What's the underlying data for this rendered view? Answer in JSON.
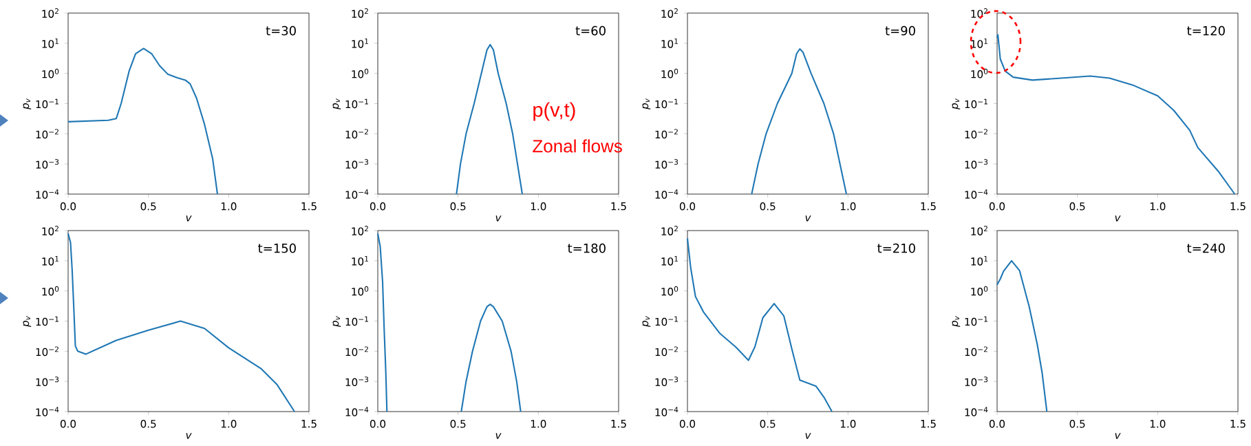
{
  "chart_data": [
    {
      "type": "line",
      "xlabel": "v",
      "ylabel": "p$_{v}$",
      "annotations": [
        "t=30"
      ],
      "log": "y",
      "xlim": [
        0,
        1.5
      ],
      "ylim": [
        0.0001,
        100
      ],
      "xticks": [
        {
          "value": 0,
          "label": "0.0"
        },
        {
          "value": 0.5,
          "label": "0.5"
        },
        {
          "value": 1,
          "label": "1.0"
        },
        {
          "value": 1.5,
          "label": "1.5"
        }
      ],
      "yticks": [
        {
          "value": 0.0001,
          "label": "10$^{−4}$"
        },
        {
          "value": 0.001,
          "label": "10$^{−3}$"
        },
        {
          "value": 0.01,
          "label": "10$^{−2}$"
        },
        {
          "value": 0.1,
          "label": "10$^{−1}$"
        },
        {
          "value": 1,
          "label": "10$^{0}$"
        },
        {
          "value": 10,
          "label": "10$^{1}$"
        },
        {
          "value": 100,
          "label": "10$^{2}$"
        }
      ],
      "x": [
        0,
        0.25,
        0.3,
        0.33,
        0.38,
        0.42,
        0.47,
        0.52,
        0.57,
        0.62,
        0.68,
        0.73,
        0.76,
        0.8,
        0.85,
        0.9,
        0.93
      ],
      "series": [
        {
          "color": "#1f77b4",
          "values": [
            0.025,
            0.028,
            0.032,
            0.1,
            1.2,
            4.5,
            6.7,
            4.5,
            1.8,
            0.95,
            0.72,
            0.6,
            0.45,
            0.15,
            0.02,
            0.0015,
            0.0001
          ]
        }
      ]
    },
    {
      "type": "line",
      "xlabel": "v",
      "ylabel": "p$_{v}$",
      "annotations": [
        "t=60",
        "p(v,t)",
        "Zonal flows"
      ],
      "log": "y",
      "xlim": [
        0,
        1.5
      ],
      "ylim": [
        0.0001,
        100
      ],
      "xticks": [
        {
          "value": 0,
          "label": "0.0"
        },
        {
          "value": 0.5,
          "label": "0.5"
        },
        {
          "value": 1,
          "label": "1.0"
        },
        {
          "value": 1.5,
          "label": "1.5"
        }
      ],
      "yticks": [
        {
          "value": 0.0001,
          "label": "10$^{−4}$"
        },
        {
          "value": 0.001,
          "label": "10$^{−3}$"
        },
        {
          "value": 0.01,
          "label": "10$^{−2}$"
        },
        {
          "value": 0.1,
          "label": "10$^{−1}$"
        },
        {
          "value": 1,
          "label": "10$^{0}$"
        },
        {
          "value": 10,
          "label": "10$^{1}$"
        },
        {
          "value": 100,
          "label": "10$^{2}$"
        }
      ],
      "x": [
        0.49,
        0.515,
        0.55,
        0.6,
        0.645,
        0.68,
        0.7,
        0.72,
        0.75,
        0.8,
        0.84,
        0.87,
        0.9
      ],
      "series": [
        {
          "color": "#1f77b4",
          "values": [
            0.0001,
            0.001,
            0.01,
            0.1,
            1,
            6,
            9,
            6,
            1,
            0.1,
            0.01,
            0.001,
            0.0001
          ]
        }
      ]
    },
    {
      "type": "line",
      "xlabel": "v",
      "ylabel": "p$_{v}$",
      "annotations": [
        "t=90"
      ],
      "log": "y",
      "xlim": [
        0,
        1.5
      ],
      "ylim": [
        0.0001,
        100
      ],
      "xticks": [
        {
          "value": 0,
          "label": "0.0"
        },
        {
          "value": 0.5,
          "label": "0.5"
        },
        {
          "value": 1,
          "label": "1.0"
        },
        {
          "value": 1.5,
          "label": "1.5"
        }
      ],
      "yticks": [
        {
          "value": 0.0001,
          "label": "10$^{−4}$"
        },
        {
          "value": 0.001,
          "label": "10$^{−3}$"
        },
        {
          "value": 0.01,
          "label": "10$^{−2}$"
        },
        {
          "value": 0.1,
          "label": "10$^{−1}$"
        },
        {
          "value": 1,
          "label": "10$^{0}$"
        },
        {
          "value": 10,
          "label": "10$^{1}$"
        },
        {
          "value": 100,
          "label": "10$^{2}$"
        }
      ],
      "x": [
        0.4,
        0.44,
        0.49,
        0.56,
        0.65,
        0.68,
        0.7,
        0.72,
        0.77,
        0.85,
        0.91,
        0.95,
        0.99
      ],
      "series": [
        {
          "color": "#1f77b4",
          "values": [
            0.0001,
            0.001,
            0.01,
            0.1,
            1,
            4.5,
            6.5,
            5,
            1,
            0.1,
            0.01,
            0.001,
            0.0001
          ]
        }
      ]
    },
    {
      "type": "line",
      "xlabel": "v",
      "ylabel": "p$_{v}$",
      "annotations": [
        "t=120"
      ],
      "log": "y",
      "xlim": [
        0,
        1.5
      ],
      "ylim": [
        0.0001,
        100
      ],
      "xticks": [
        {
          "value": 0,
          "label": "0.0"
        },
        {
          "value": 0.5,
          "label": "0.5"
        },
        {
          "value": 1,
          "label": "1.0"
        },
        {
          "value": 1.5,
          "label": "1.5"
        }
      ],
      "yticks": [
        {
          "value": 0.0001,
          "label": "10$^{−4}$"
        },
        {
          "value": 0.001,
          "label": "10$^{−3}$"
        },
        {
          "value": 0.01,
          "label": "10$^{−2}$"
        },
        {
          "value": 0.1,
          "label": "10$^{−1}$"
        },
        {
          "value": 1,
          "label": "10$^{0}$"
        },
        {
          "value": 10,
          "label": "10$^{1}$"
        },
        {
          "value": 100,
          "label": "10$^{2}$"
        }
      ],
      "x": [
        0,
        0.005,
        0.02,
        0.05,
        0.1,
        0.22,
        0.4,
        0.58,
        0.7,
        0.85,
        1.0,
        1.1,
        1.2,
        1.25,
        1.38,
        1.48
      ],
      "series": [
        {
          "color": "#1f77b4",
          "values": [
            15,
            19,
            3,
            1.2,
            0.75,
            0.6,
            0.7,
            0.82,
            0.7,
            0.4,
            0.18,
            0.06,
            0.013,
            0.0035,
            0.00055,
            0.0001
          ]
        }
      ]
    },
    {
      "type": "line",
      "xlabel": "v",
      "ylabel": "p$_{v}$",
      "annotations": [
        "t=150"
      ],
      "log": "y",
      "xlim": [
        0,
        1.5
      ],
      "ylim": [
        0.0001,
        100
      ],
      "xticks": [
        {
          "value": 0,
          "label": "0.0"
        },
        {
          "value": 0.5,
          "label": "0.5"
        },
        {
          "value": 1,
          "label": "1.0"
        },
        {
          "value": 1.5,
          "label": "1.5"
        }
      ],
      "yticks": [
        {
          "value": 0.0001,
          "label": "10$^{−4}$"
        },
        {
          "value": 0.001,
          "label": "10$^{−3}$"
        },
        {
          "value": 0.01,
          "label": "10$^{−2}$"
        },
        {
          "value": 0.1,
          "label": "10$^{−1}$"
        },
        {
          "value": 1,
          "label": "10$^{0}$"
        },
        {
          "value": 10,
          "label": "10$^{1}$"
        },
        {
          "value": 100,
          "label": "10$^{2}$"
        }
      ],
      "x": [
        0,
        0.015,
        0.025,
        0.035,
        0.045,
        0.06,
        0.11,
        0.3,
        0.5,
        0.7,
        0.85,
        1.0,
        1.2,
        1.3,
        1.41
      ],
      "series": [
        {
          "color": "#1f77b4",
          "values": [
            80,
            40,
            5,
            0.3,
            0.015,
            0.01,
            0.008,
            0.023,
            0.05,
            0.1,
            0.057,
            0.013,
            0.0027,
            0.0008,
            0.0001
          ]
        }
      ]
    },
    {
      "type": "line",
      "xlabel": "v",
      "ylabel": "p$_{v}$",
      "annotations": [
        "t=180"
      ],
      "log": "y",
      "xlim": [
        0,
        1.5
      ],
      "ylim": [
        0.0001,
        100
      ],
      "xticks": [
        {
          "value": 0,
          "label": "0.0"
        },
        {
          "value": 0.5,
          "label": "0.5"
        },
        {
          "value": 1,
          "label": "1.0"
        },
        {
          "value": 1.5,
          "label": "1.5"
        }
      ],
      "yticks": [
        {
          "value": 0.0001,
          "label": "10$^{−4}$"
        },
        {
          "value": 0.001,
          "label": "10$^{−3}$"
        },
        {
          "value": 0.01,
          "label": "10$^{−2}$"
        },
        {
          "value": 0.1,
          "label": "10$^{−1}$"
        },
        {
          "value": 1,
          "label": "10$^{0}$"
        },
        {
          "value": 10,
          "label": "10$^{1}$"
        },
        {
          "value": 100,
          "label": "10$^{2}$"
        }
      ],
      "x": [
        0,
        0.015,
        0.03,
        0.04,
        0.05,
        0.057,
        0.3,
        0.52,
        0.55,
        0.59,
        0.64,
        0.68,
        0.7,
        0.72,
        0.775,
        0.83,
        0.865,
        0.89
      ],
      "series": [
        {
          "color": "#1f77b4",
          "values": [
            80,
            30,
            2,
            0.05,
            0.002,
            0.0001,
            null,
            0.0001,
            0.001,
            0.01,
            0.1,
            0.3,
            0.36,
            0.3,
            0.1,
            0.01,
            0.001,
            0.0001
          ]
        }
      ]
    },
    {
      "type": "line",
      "xlabel": "v",
      "ylabel": "p$_{v}$",
      "annotations": [
        "t=210"
      ],
      "log": "y",
      "xlim": [
        0,
        1.5
      ],
      "ylim": [
        0.0001,
        100
      ],
      "xticks": [
        {
          "value": 0,
          "label": "0.0"
        },
        {
          "value": 0.5,
          "label": "0.5"
        },
        {
          "value": 1,
          "label": "1.0"
        },
        {
          "value": 1.5,
          "label": "1.5"
        }
      ],
      "yticks": [
        {
          "value": 0.0001,
          "label": "10$^{−4}$"
        },
        {
          "value": 0.001,
          "label": "10$^{−3}$"
        },
        {
          "value": 0.01,
          "label": "10$^{−2}$"
        },
        {
          "value": 0.1,
          "label": "10$^{−1}$"
        },
        {
          "value": 1,
          "label": "10$^{0}$"
        },
        {
          "value": 10,
          "label": "10$^{1}$"
        },
        {
          "value": 100,
          "label": "10$^{2}$"
        }
      ],
      "x": [
        0,
        0.02,
        0.05,
        0.1,
        0.2,
        0.3,
        0.38,
        0.42,
        0.47,
        0.54,
        0.6,
        0.65,
        0.7,
        0.8,
        0.85,
        0.9
      ],
      "series": [
        {
          "color": "#1f77b4",
          "values": [
            55,
            6,
            0.65,
            0.2,
            0.04,
            0.014,
            0.005,
            0.014,
            0.13,
            0.38,
            0.15,
            0.012,
            0.0011,
            0.0007,
            0.0003,
            0.0001
          ]
        }
      ]
    },
    {
      "type": "line",
      "xlabel": "v",
      "ylabel": "p$_{v}$",
      "annotations": [
        "t=240"
      ],
      "log": "y",
      "xlim": [
        0,
        1.5
      ],
      "ylim": [
        0.0001,
        100
      ],
      "xticks": [
        {
          "value": 0,
          "label": "0.0"
        },
        {
          "value": 0.5,
          "label": "0.5"
        },
        {
          "value": 1,
          "label": "1.0"
        },
        {
          "value": 1.5,
          "label": "1.5"
        }
      ],
      "yticks": [
        {
          "value": 0.0001,
          "label": "10$^{−4}$"
        },
        {
          "value": 0.001,
          "label": "10$^{−3}$"
        },
        {
          "value": 0.01,
          "label": "10$^{−2}$"
        },
        {
          "value": 0.1,
          "label": "10$^{−1}$"
        },
        {
          "value": 1,
          "label": "10$^{0}$"
        },
        {
          "value": 10,
          "label": "10$^{1}$"
        },
        {
          "value": 100,
          "label": "10$^{2}$"
        }
      ],
      "x": [
        0,
        0.02,
        0.04,
        0.09,
        0.14,
        0.2,
        0.25,
        0.28,
        0.31
      ],
      "series": [
        {
          "color": "#1f77b4",
          "values": [
            1.6,
            2.5,
            4.5,
            10,
            4.7,
            0.3,
            0.017,
            0.002,
            0.0001
          ]
        }
      ]
    }
  ]
}
